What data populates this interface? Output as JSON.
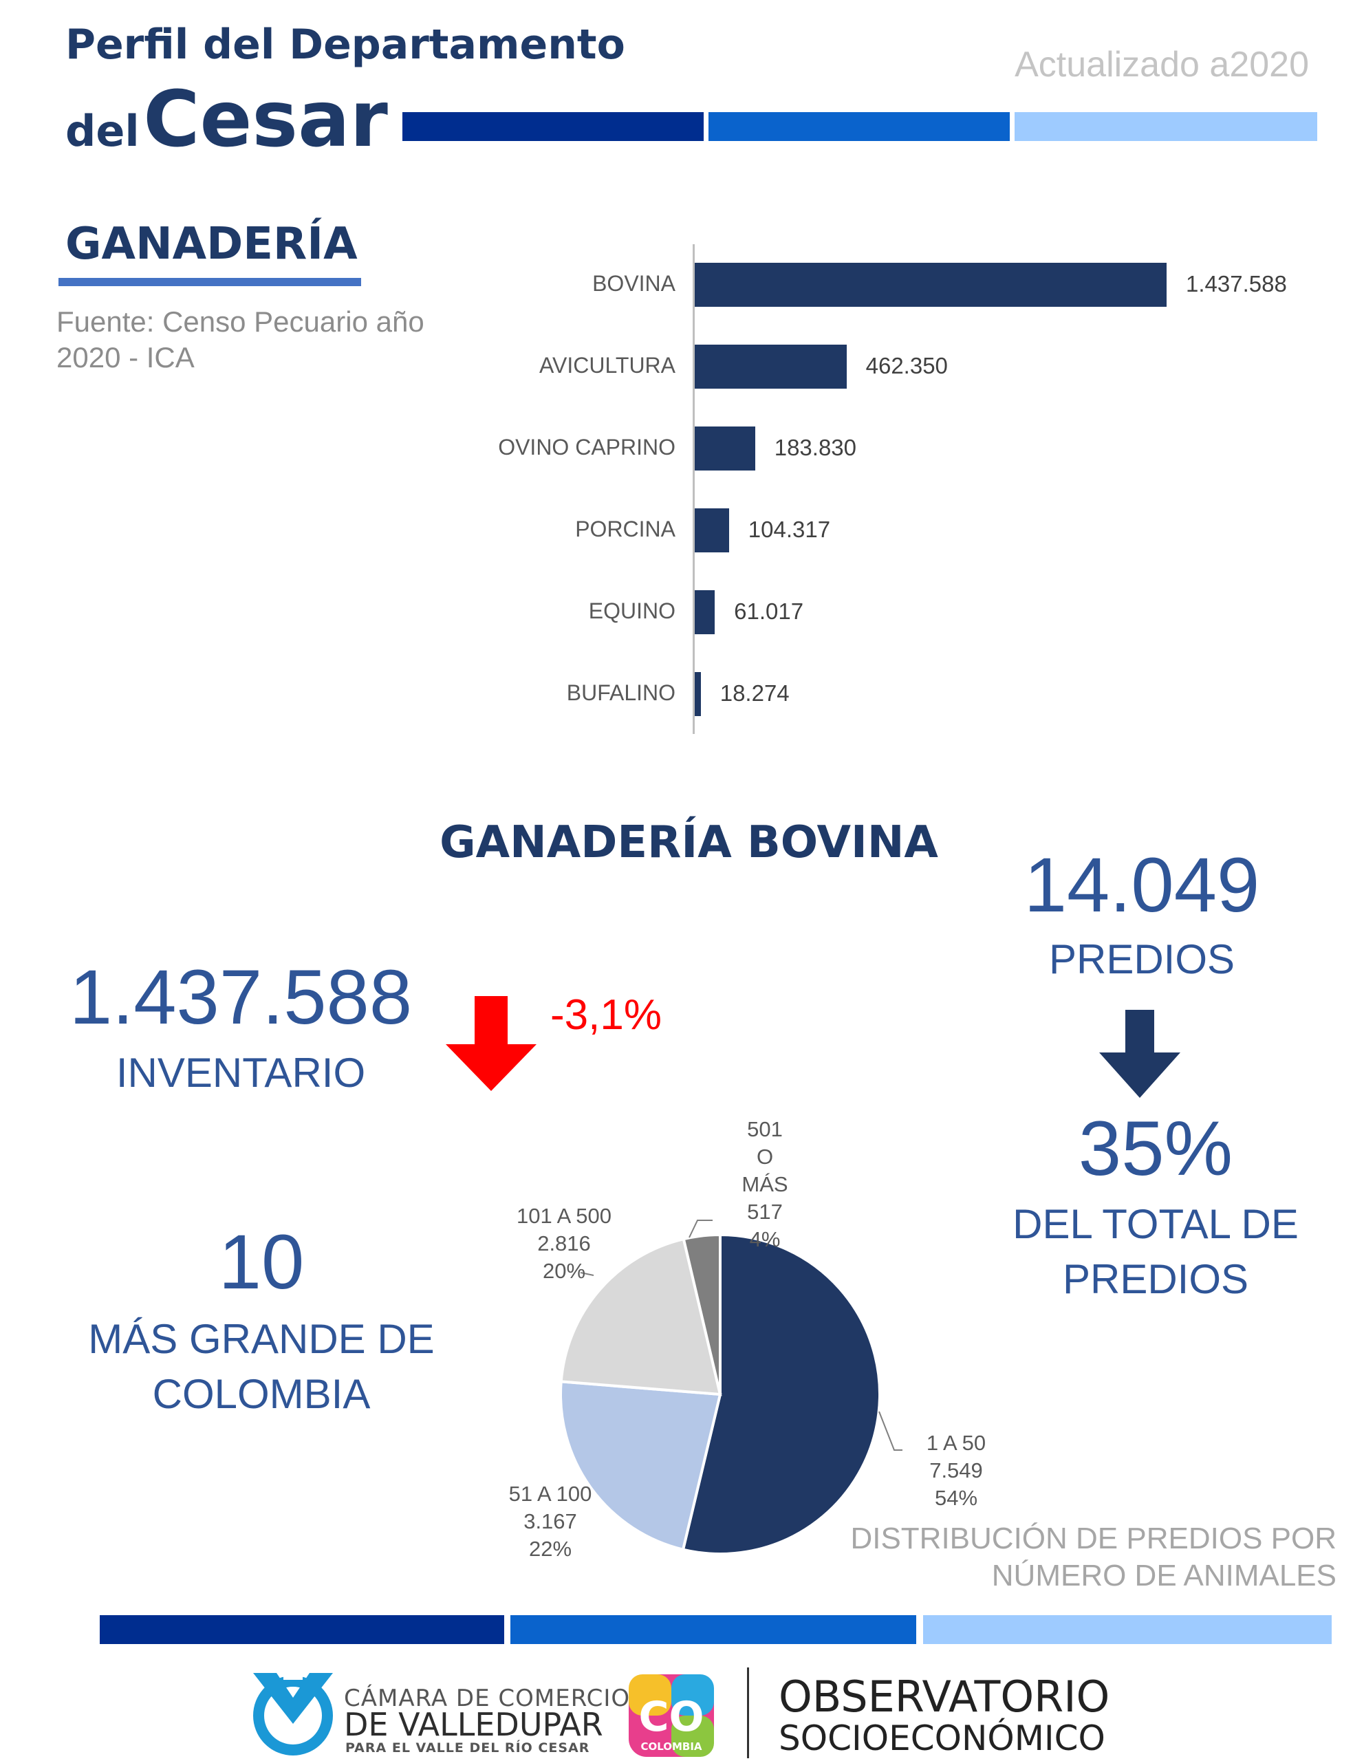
{
  "header": {
    "title_line1": "Perfil del Departamento",
    "title_del": "del",
    "title_cesar": "Cesar",
    "updated": "Actualizado a2020",
    "colors": [
      "#002d8f",
      "#0a63cc",
      "#9ecbff"
    ]
  },
  "section": {
    "title": "GANADERÍA",
    "source": "Fuente: Censo Pecuario año 2020 - ICA"
  },
  "chart_data": [
    {
      "type": "bar",
      "orientation": "horizontal",
      "categories": [
        "BOVINA",
        "AVICULTURA",
        "OVINO CAPRINO",
        "PORCINA",
        "EQUINO",
        "BUFALINO"
      ],
      "values": [
        1437588,
        462350,
        183830,
        104317,
        61017,
        18274
      ],
      "value_labels": [
        "1.437.588",
        "462.350",
        "183.830",
        "104.317",
        "61.017",
        "18.274"
      ],
      "color": "#1f3864"
    },
    {
      "type": "pie",
      "categories": [
        "1 A 50",
        "51 A 100",
        "101 A 500",
        "501 O MÁS"
      ],
      "values": [
        7549,
        3167,
        2816,
        517
      ],
      "value_labels": [
        "7.549",
        "3.167",
        "2.816",
        "517"
      ],
      "percent_labels": [
        "54%",
        "22%",
        "20%",
        "4%"
      ],
      "colors": [
        "#203864",
        "#b4c7e7",
        "#d9d9d9",
        "#7f7f7f"
      ],
      "caption": [
        "DISTRIBUCIÓN DE PREDIOS POR",
        "NÚMERO DE ANIMALES"
      ]
    }
  ],
  "bovina": {
    "title": "GANADERÍA BOVINA",
    "inventory_value": "1.437.588",
    "inventory_label": "INVENTARIO",
    "change": "-3,1%",
    "rank_value": "10",
    "rank_label_1": "MÁS GRANDE DE",
    "rank_label_2": "COLOMBIA",
    "predios_value": "14.049",
    "predios_label": "PREDIOS",
    "share_value": "35%",
    "share_label_1": "DEL TOTAL DE",
    "share_label_2": "PREDIOS"
  },
  "footer": {
    "camara_line1": "CÁMARA DE COMERCIO",
    "camara_line2": "DE VALLEDUPAR",
    "camara_line3": "PARA EL VALLE DEL RÍO CESAR",
    "colombia_logo": "CO",
    "colombia_word": "COLOMBIA",
    "obs_line1": "OBSERVATORIO",
    "obs_line2": "SOCIOECONÓMICO"
  }
}
